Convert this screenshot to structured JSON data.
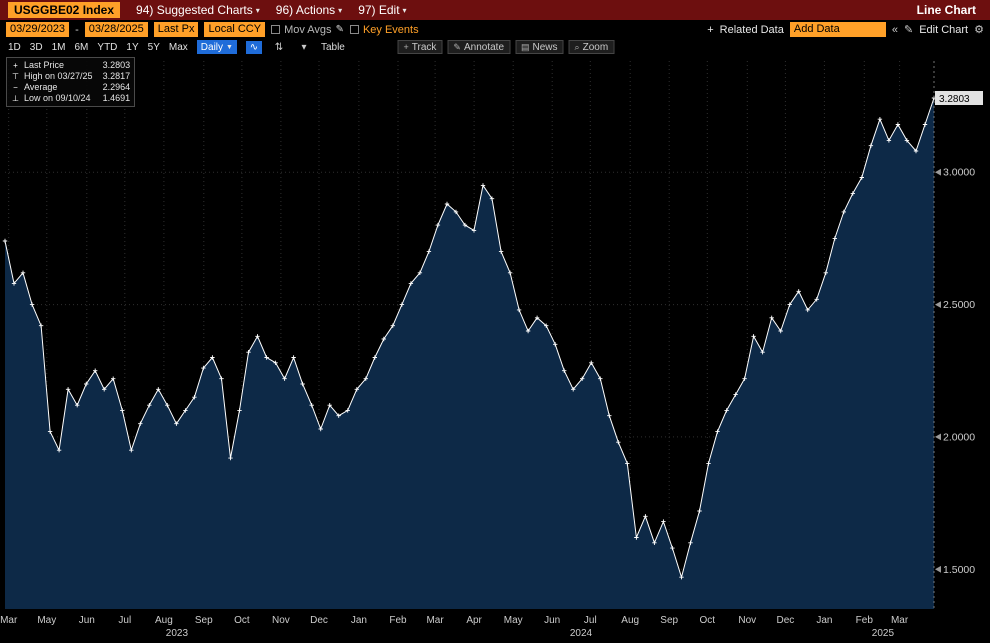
{
  "title_bar": {
    "ticker": "USGGBE02 Index",
    "menus": [
      {
        "label": "94) Suggested Charts"
      },
      {
        "label": "96) Actions"
      },
      {
        "label": "97) Edit"
      }
    ],
    "mode_label": "Line Chart"
  },
  "toolbar": {
    "date_from": "03/29/2023",
    "date_separator": "-",
    "date_to": "03/28/2025",
    "price_field": "Last Px",
    "currency_field": "Local CCY",
    "mov_avgs_label": "Mov Avgs",
    "key_events_label": "Key Events",
    "related_data_label": "Related Data",
    "add_data_value": "Add Data",
    "edit_chart_label": "Edit Chart"
  },
  "period_bar": {
    "ranges": [
      "1D",
      "3D",
      "1M",
      "6M",
      "YTD",
      "1Y",
      "5Y",
      "Max"
    ],
    "frequency": "Daily",
    "table_label": "Table",
    "track_label": "Track",
    "annotate_label": "Annotate",
    "news_label": "News",
    "zoom_label": "Zoom"
  },
  "legend": {
    "rows": [
      {
        "icon": "last-price-marker",
        "label": "Last Price",
        "value": "3.2803"
      },
      {
        "icon": "high-marker",
        "label": "High on 03/27/25",
        "value": "3.2817"
      },
      {
        "icon": "average-marker",
        "label": "Average",
        "value": "2.2964"
      },
      {
        "icon": "low-marker",
        "label": "Low on 09/10/24",
        "value": "1.4691"
      }
    ]
  },
  "icons": {
    "caret_down": "▾",
    "caret_down_solid": "▼",
    "pencil": "✎",
    "gear": "⚙",
    "plus": "+",
    "chevrons_left": "«",
    "line_chart": "∿",
    "candle": "⇅",
    "news": "▤",
    "zoom": "⌕",
    "last_price_marker": "+",
    "high_marker": "⊤",
    "average_marker": "−",
    "low_marker": "⊥"
  },
  "chart_data": {
    "type": "area",
    "title": "USGGBE02 Index — Last Price (Daily) 03/29/2023 - 03/28/2025",
    "ylabel": "",
    "xlabel": "",
    "ylim": [
      1.35,
      3.42
    ],
    "y_gridlines": [
      1.5,
      2.0,
      2.5,
      3.0
    ],
    "y_tick_labels": [
      "1.5000",
      "2.0000",
      "2.5000",
      "3.0000"
    ],
    "last_price": 3.2803,
    "last_price_label": "3.2803",
    "high": {
      "date": "03/27/25",
      "value": 3.2817
    },
    "low": {
      "date": "09/10/24",
      "value": 1.4691
    },
    "average": 2.2964,
    "x_ticks": [
      {
        "pos": 0.004,
        "label": "Mar"
      },
      {
        "pos": 0.045,
        "label": "May"
      },
      {
        "pos": 0.088,
        "label": "Jun"
      },
      {
        "pos": 0.129,
        "label": "Jul"
      },
      {
        "pos": 0.171,
        "label": "Aug"
      },
      {
        "pos": 0.214,
        "label": "Sep"
      },
      {
        "pos": 0.255,
        "label": "Oct"
      },
      {
        "pos": 0.297,
        "label": "Nov"
      },
      {
        "pos": 0.338,
        "label": "Dec"
      },
      {
        "pos": 0.381,
        "label": "Jan"
      },
      {
        "pos": 0.423,
        "label": "Feb"
      },
      {
        "pos": 0.463,
        "label": "Mar"
      },
      {
        "pos": 0.505,
        "label": "Apr"
      },
      {
        "pos": 0.547,
        "label": "May"
      },
      {
        "pos": 0.589,
        "label": "Jun"
      },
      {
        "pos": 0.63,
        "label": "Jul"
      },
      {
        "pos": 0.673,
        "label": "Aug"
      },
      {
        "pos": 0.715,
        "label": "Sep"
      },
      {
        "pos": 0.756,
        "label": "Oct"
      },
      {
        "pos": 0.799,
        "label": "Nov"
      },
      {
        "pos": 0.84,
        "label": "Dec"
      },
      {
        "pos": 0.882,
        "label": "Jan"
      },
      {
        "pos": 0.925,
        "label": "Feb"
      },
      {
        "pos": 0.963,
        "label": "Mar"
      }
    ],
    "year_labels": [
      {
        "pos": 0.185,
        "label": "2023"
      },
      {
        "pos": 0.62,
        "label": "2024"
      },
      {
        "pos": 0.945,
        "label": "2025"
      }
    ],
    "series": [
      {
        "name": "Last Price",
        "cadence": "weekly-approx",
        "values": [
          2.74,
          2.58,
          2.62,
          2.5,
          2.42,
          2.02,
          1.95,
          2.18,
          2.12,
          2.2,
          2.25,
          2.18,
          2.22,
          2.1,
          1.95,
          2.05,
          2.12,
          2.18,
          2.12,
          2.05,
          2.1,
          2.15,
          2.26,
          2.3,
          2.22,
          1.92,
          2.1,
          2.32,
          2.38,
          2.3,
          2.28,
          2.22,
          2.3,
          2.2,
          2.12,
          2.03,
          2.12,
          2.08,
          2.1,
          2.18,
          2.22,
          2.3,
          2.37,
          2.42,
          2.5,
          2.58,
          2.62,
          2.7,
          2.8,
          2.88,
          2.85,
          2.8,
          2.78,
          2.95,
          2.9,
          2.7,
          2.62,
          2.48,
          2.4,
          2.45,
          2.42,
          2.35,
          2.25,
          2.18,
          2.22,
          2.28,
          2.22,
          2.08,
          1.98,
          1.9,
          1.62,
          1.7,
          1.6,
          1.68,
          1.58,
          1.47,
          1.6,
          1.72,
          1.9,
          2.02,
          2.1,
          2.16,
          2.22,
          2.38,
          2.32,
          2.45,
          2.4,
          2.5,
          2.55,
          2.48,
          2.52,
          2.62,
          2.75,
          2.85,
          2.92,
          2.98,
          3.1,
          3.2,
          3.12,
          3.18,
          3.12,
          3.08,
          3.18,
          3.2803
        ]
      }
    ],
    "colors": {
      "area_fill": "#0d2947",
      "line": "#ffffff",
      "grid": "#2f2f2f",
      "axis_text": "#cccccc",
      "background": "#000000",
      "amber": "#ffa028",
      "titlebar_red": "#6d0f0f",
      "highlight_blue": "#1f6cd9"
    }
  }
}
